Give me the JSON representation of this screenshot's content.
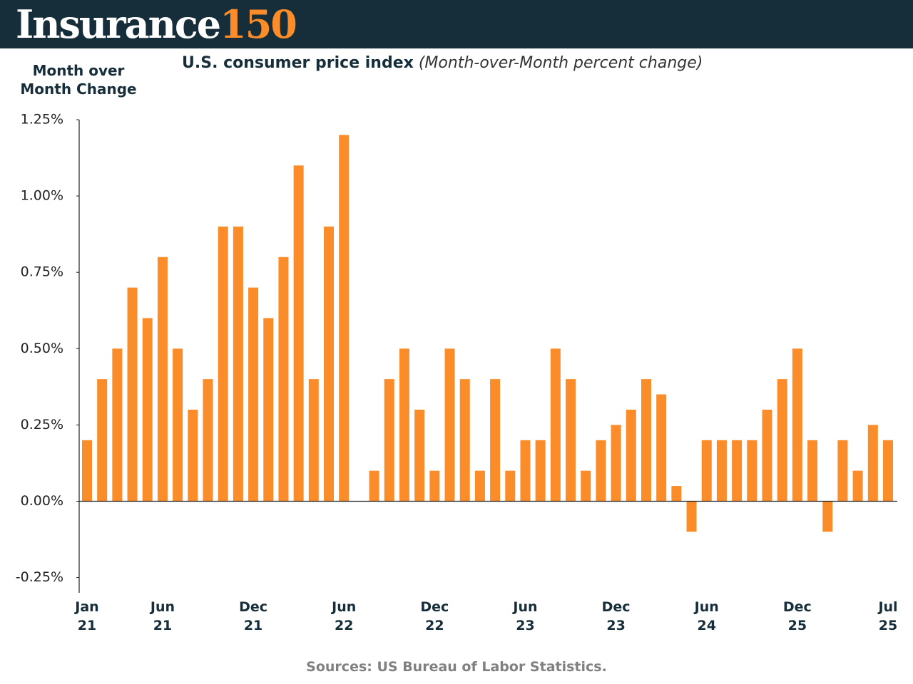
{
  "header": {
    "brand_name": "Insurance",
    "brand_number": "150"
  },
  "chart_data": {
    "type": "bar",
    "title": "U.S. consumer price index",
    "subtitle": "(Month-over-Month percent change)",
    "y_label": "Month over Month Change",
    "source": "Sources: US Bureau of Labor Statistics.",
    "color": "#fb8c2a",
    "categories": [
      "Jan 21",
      null,
      null,
      null,
      null,
      "Jun 21",
      null,
      null,
      null,
      null,
      null,
      "Dec 21",
      null,
      null,
      null,
      null,
      null,
      "Jun 22",
      null,
      null,
      null,
      null,
      null,
      "Dec 22",
      null,
      null,
      null,
      null,
      null,
      "Jun 23",
      null,
      null,
      null,
      null,
      null,
      "Dec 23",
      null,
      null,
      null,
      null,
      null,
      "Jun 24",
      null,
      null,
      null,
      null,
      null,
      "Dec 25",
      null,
      null,
      null,
      null,
      null,
      "Jul 25"
    ],
    "values": [
      0.2,
      0.4,
      0.5,
      0.7,
      0.6,
      0.8,
      0.5,
      0.3,
      0.4,
      0.9,
      0.9,
      0.7,
      0.6,
      0.8,
      1.1,
      0.4,
      0.9,
      1.2,
      0,
      0.1,
      0.4,
      0.5,
      0.3,
      0.1,
      0.5,
      0.4,
      0.1,
      0.4,
      0.1,
      0.2,
      0.2,
      0.5,
      0.4,
      0.1,
      0.2,
      0.25,
      0.3,
      0.4,
      0.35,
      0.05,
      -0.1,
      0.2,
      0.2,
      0.2,
      0.2,
      0.3,
      0.4,
      0.5,
      0.2,
      -0.1,
      0.2,
      0.1,
      0.25,
      0.2
    ],
    "ylim": [
      -0.3,
      1.25
    ],
    "yticks": [
      {
        "value": -0.25,
        "label": "-0.25%"
      },
      {
        "value": 0,
        "label": "0.00%"
      },
      {
        "value": 0.25,
        "label": "0.25%"
      },
      {
        "value": 0.5,
        "label": "0.50%"
      },
      {
        "value": 0.75,
        "label": "0.75%"
      },
      {
        "value": 1.0,
        "label": "1.00%"
      },
      {
        "value": 1.25,
        "label": "1.25%"
      }
    ],
    "grid": false
  }
}
